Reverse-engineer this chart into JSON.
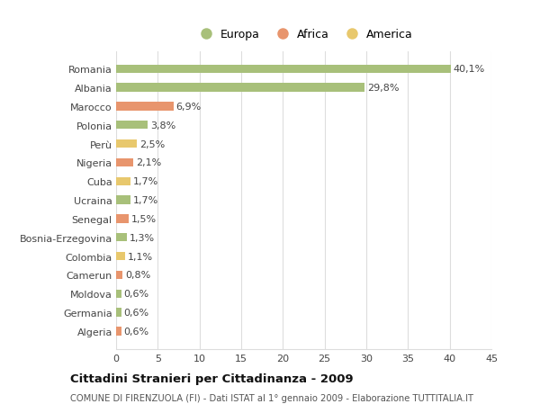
{
  "categories": [
    "Algeria",
    "Germania",
    "Moldova",
    "Camerun",
    "Colombia",
    "Bosnia-Erzegovina",
    "Senegal",
    "Ucraina",
    "Cuba",
    "Nigeria",
    "Perù",
    "Polonia",
    "Marocco",
    "Albania",
    "Romania"
  ],
  "values": [
    0.6,
    0.6,
    0.6,
    0.8,
    1.1,
    1.3,
    1.5,
    1.7,
    1.7,
    2.1,
    2.5,
    3.8,
    6.9,
    29.8,
    40.1
  ],
  "colors": [
    "#e8956d",
    "#a8c07a",
    "#a8c07a",
    "#e8956d",
    "#e8c86d",
    "#a8c07a",
    "#e8956d",
    "#a8c07a",
    "#e8c86d",
    "#e8956d",
    "#e8c86d",
    "#a8c07a",
    "#e8956d",
    "#a8c07a",
    "#a8c07a"
  ],
  "labels": [
    "0,6%",
    "0,6%",
    "0,6%",
    "0,8%",
    "1,1%",
    "1,3%",
    "1,5%",
    "1,7%",
    "1,7%",
    "2,1%",
    "2,5%",
    "3,8%",
    "6,9%",
    "29,8%",
    "40,1%"
  ],
  "legend": [
    {
      "label": "Europa",
      "color": "#a8c07a"
    },
    {
      "label": "Africa",
      "color": "#e8956d"
    },
    {
      "label": "America",
      "color": "#e8c86d"
    }
  ],
  "title": "Cittadini Stranieri per Cittadinanza - 2009",
  "subtitle": "COMUNE DI FIRENZUOLA (FI) - Dati ISTAT al 1° gennaio 2009 - Elaborazione TUTTITALIA.IT",
  "xlim": [
    0,
    45
  ],
  "xticks": [
    0,
    5,
    10,
    15,
    20,
    25,
    30,
    35,
    40,
    45
  ],
  "bg_color": "#ffffff",
  "grid_color": "#dddddd",
  "bar_height": 0.45,
  "label_fontsize": 8.0,
  "ytick_fontsize": 8.0,
  "xtick_fontsize": 8.0
}
